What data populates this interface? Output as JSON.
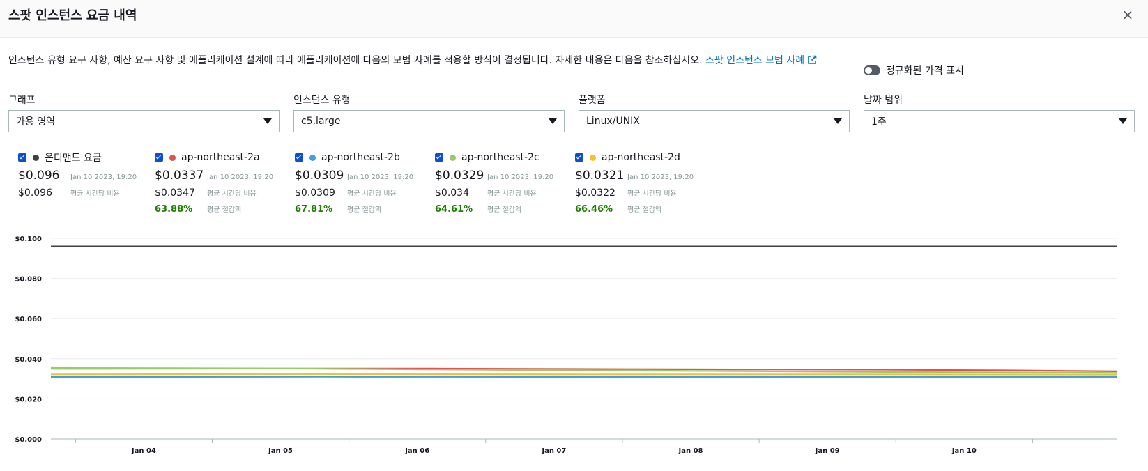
{
  "modal": {
    "title": "스팟 인스턴스 요금 내역",
    "close_label": "×"
  },
  "description": {
    "text": "인스턴스 유형 요구 사항, 예산 요구 사항 및 애플리케이션 설계에 따라 애플리케이션에 다음의 모범 사례를 적용할 방식이 결정됩니다. 자세한 내용은 다음을 참조하십시오. ",
    "link_text": "스팟 인스턴스 모범 사례",
    "link_icon": "external-link-icon"
  },
  "toggle": {
    "label": "정규화된 가격 표시",
    "on": false
  },
  "filters": [
    {
      "label": "그래프",
      "value": "가용 영역"
    },
    {
      "label": "인스턴스 유형",
      "value": "c5.large"
    },
    {
      "label": "플랫폼",
      "value": "Linux/UNIX"
    },
    {
      "label": "날짜 범위",
      "value": "1주"
    }
  ],
  "legend": [
    {
      "name": "온디맨드 요금",
      "color": "#3f3f3f",
      "checked": true,
      "price": "$0.096",
      "timestamp": "Jan 10 2023, 19:20",
      "avg": "$0.096",
      "avg_label": "평균 시간당 비용",
      "savings": "",
      "savings_label": ""
    },
    {
      "name": "ap-northeast-2a",
      "color": "#e15252",
      "checked": true,
      "price": "$0.0337",
      "timestamp": "Jan 10 2023, 19:20",
      "avg": "$0.0347",
      "avg_label": "평균 시간당 비용",
      "savings": "63.88%",
      "savings_label": "평균 절감액"
    },
    {
      "name": "ap-northeast-2b",
      "color": "#3f9fe6",
      "checked": true,
      "price": "$0.0309",
      "timestamp": "Jan 10 2023, 19:20",
      "avg": "$0.0309",
      "avg_label": "평균 시간당 비용",
      "savings": "67.81%",
      "savings_label": "평균 절감액"
    },
    {
      "name": "ap-northeast-2c",
      "color": "#99cc66",
      "checked": true,
      "price": "$0.0329",
      "timestamp": "Jan 10 2023, 19:20",
      "avg": "$0.034",
      "avg_label": "평균 시간당 비용",
      "savings": "64.61%",
      "savings_label": "평균 절감액"
    },
    {
      "name": "ap-northeast-2d",
      "color": "#f5c12e",
      "checked": true,
      "price": "$0.0321",
      "timestamp": "Jan 10 2023, 19:20",
      "avg": "$0.0322",
      "avg_label": "평균 시간당 비용",
      "savings": "66.46%",
      "savings_label": "평균 절감액"
    }
  ],
  "chart_data": {
    "type": "line",
    "x": [
      "Jan 04",
      "Jan 05",
      "Jan 06",
      "Jan 07",
      "Jan 08",
      "Jan 09",
      "Jan 10"
    ],
    "x_range": [
      "Jan 03 2023",
      "Jan 10 2023, 19:20"
    ],
    "ylim": [
      0,
      0.1
    ],
    "yticks": [
      0.0,
      0.02,
      0.04,
      0.06,
      0.08,
      0.1
    ],
    "ytick_labels": [
      "$0.000",
      "$0.020",
      "$0.040",
      "$0.060",
      "$0.080",
      "$0.100"
    ],
    "grid": true,
    "series": [
      {
        "name": "온디맨드 요금",
        "color": "#3f3f3f",
        "points": [
          [
            0,
            0.096
          ],
          [
            7.8,
            0.096
          ]
        ]
      },
      {
        "name": "ap-northeast-2a",
        "color": "#e15252",
        "points": [
          [
            0,
            0.035
          ],
          [
            1.5,
            0.0351
          ],
          [
            2.8,
            0.0351
          ],
          [
            3.8,
            0.0349
          ],
          [
            5,
            0.0347
          ],
          [
            6.2,
            0.0345
          ],
          [
            7,
            0.0342
          ],
          [
            7.8,
            0.0337
          ]
        ]
      },
      {
        "name": "ap-northeast-2b",
        "color": "#3f9fe6",
        "points": [
          [
            0,
            0.0309
          ],
          [
            2,
            0.031
          ],
          [
            4,
            0.0309
          ],
          [
            6,
            0.0309
          ],
          [
            7.8,
            0.0309
          ]
        ]
      },
      {
        "name": "ap-northeast-2c",
        "color": "#99cc66",
        "points": [
          [
            0,
            0.0354
          ],
          [
            1.5,
            0.0352
          ],
          [
            3,
            0.0346
          ],
          [
            4.5,
            0.034
          ],
          [
            6,
            0.0334
          ],
          [
            7.8,
            0.0329
          ]
        ]
      },
      {
        "name": "ap-northeast-2d",
        "color": "#f5c12e",
        "points": [
          [
            0,
            0.0322
          ],
          [
            2,
            0.0323
          ],
          [
            4,
            0.0322
          ],
          [
            6,
            0.0322
          ],
          [
            7.8,
            0.0321
          ]
        ]
      }
    ]
  }
}
